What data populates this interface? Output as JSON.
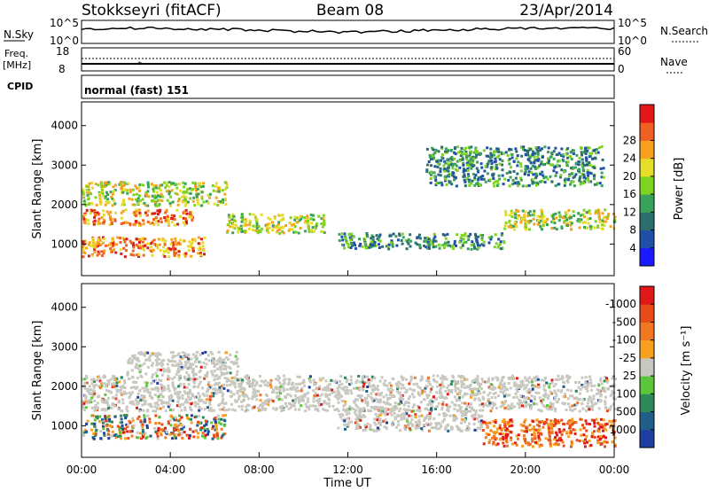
{
  "header": {
    "title": "Stokkseyri (fitACF)",
    "beam": "Beam 08",
    "date": "23/Apr/2014"
  },
  "nsky_panel": {
    "left_label": "N.Sky",
    "left_ticks": [
      "10^5",
      "10^0"
    ],
    "right_ticks": [
      "10^5",
      "10^0"
    ],
    "right_label": "N.Search"
  },
  "freq_panel": {
    "left_label_1": "Freq.",
    "left_label_2": "[MHz]",
    "left_ticks": [
      "18",
      "8"
    ],
    "right_ticks": [
      "60",
      "0"
    ],
    "right_label": "Nave"
  },
  "cpid_panel": {
    "label": "CPID",
    "text": "normal (fast) 151"
  },
  "chart_data": [
    {
      "type": "heatmap",
      "panel": "power",
      "ylabel": "Slant Range [km]",
      "yticks": [
        "1000",
        "2000",
        "3000",
        "4000"
      ],
      "ylim": [
        200,
        4600
      ],
      "xticks": [
        "00:00",
        "04:00",
        "08:00",
        "12:00",
        "16:00",
        "20:00",
        "00:00"
      ],
      "xlim_hours": [
        0,
        24
      ],
      "colorbar_label": "Power [dB]",
      "colorbar_ticks": [
        "4",
        "8",
        "12",
        "16",
        "20",
        "24",
        "28"
      ],
      "colorbar_colors": [
        "#1a1aff",
        "#1f4fa8",
        "#2d6f6f",
        "#3aa35a",
        "#7ed321",
        "#e5dd2a",
        "#f7a11e",
        "#f06020",
        "#e21818"
      ],
      "regions": [
        {
          "t_start": 0.0,
          "t_end": 5.5,
          "r_min": 700,
          "r_max": 1200,
          "level": "high"
        },
        {
          "t_start": 0.0,
          "t_end": 5.0,
          "r_min": 1500,
          "r_max": 1900,
          "level": "high"
        },
        {
          "t_start": 0.0,
          "t_end": 6.5,
          "r_min": 2000,
          "r_max": 2600,
          "level": "medium"
        },
        {
          "t_start": 6.5,
          "t_end": 11.0,
          "r_min": 1300,
          "r_max": 1800,
          "level": "medium"
        },
        {
          "t_start": 11.5,
          "t_end": 19.0,
          "r_min": 900,
          "r_max": 1300,
          "level": "low"
        },
        {
          "t_start": 19.0,
          "t_end": 24.0,
          "r_min": 1400,
          "r_max": 1900,
          "level": "medium"
        },
        {
          "t_start": 15.5,
          "t_end": 23.5,
          "r_min": 2500,
          "r_max": 3500,
          "level": "low"
        }
      ]
    },
    {
      "type": "heatmap",
      "panel": "velocity",
      "ylabel": "Slant Range [km]",
      "yticks": [
        "1000",
        "2000",
        "3000",
        "4000"
      ],
      "ylim": [
        200,
        4600
      ],
      "xticks": [
        "00:00",
        "04:00",
        "08:00",
        "12:00",
        "16:00",
        "20:00",
        "00:00"
      ],
      "xlim_hours": [
        0,
        24
      ],
      "xlabel": "Time UT",
      "colorbar_label": "Velocity [m s⁻¹]",
      "colorbar_ticks": [
        "1000",
        "500",
        "100",
        "25",
        "-25",
        "-100",
        "-500",
        "-1000"
      ],
      "colorbar_colors": [
        "#1e3fa0",
        "#1f5f8a",
        "#2f8a5a",
        "#5cc63a",
        "#c8c8c0",
        "#f7a11e",
        "#f07820",
        "#e84a18",
        "#e01818"
      ],
      "regions": [
        {
          "t_start": 0.0,
          "t_end": 6.5,
          "r_min": 700,
          "r_max": 1300,
          "level": "mixed"
        },
        {
          "t_start": 0.0,
          "t_end": 24.0,
          "r_min": 1400,
          "r_max": 2300,
          "level": "ground"
        },
        {
          "t_start": 2.0,
          "t_end": 7.0,
          "r_min": 2300,
          "r_max": 2900,
          "level": "ground"
        },
        {
          "t_start": 11.5,
          "t_end": 18.0,
          "r_min": 900,
          "r_max": 1500,
          "level": "ground"
        },
        {
          "t_start": 18.0,
          "t_end": 24.0,
          "r_min": 500,
          "r_max": 1200,
          "level": "negative"
        }
      ]
    }
  ],
  "colors": {
    "frame": "#000000",
    "background": "#ffffff"
  }
}
